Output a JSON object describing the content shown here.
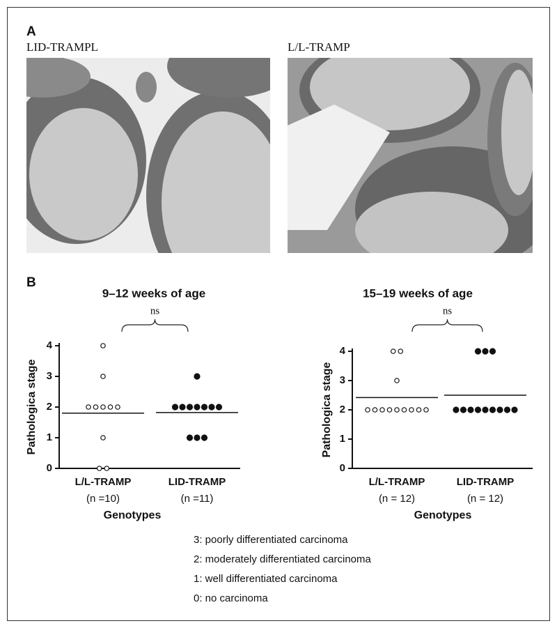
{
  "panel_a": {
    "label": "A",
    "images": [
      {
        "caption": "LID-TRAMPL"
      },
      {
        "caption": "L/L-TRAMP"
      }
    ]
  },
  "panel_b": {
    "label": "B"
  },
  "chart_data": [
    {
      "type": "dot",
      "title": "9–12 weeks of age",
      "annotation": "ns",
      "y_label": "Pathologica stage",
      "x_label": "Genotypes",
      "categories": [
        "L/L-TRAMP",
        "LID-TRAMP"
      ],
      "category_notes": [
        "(n =10)",
        "(n =11)"
      ],
      "groups": [
        {
          "marker": "open",
          "values": [
            4,
            3,
            2,
            2,
            2,
            2,
            2,
            1,
            0,
            0
          ],
          "mean": 1.8
        },
        {
          "marker": "filled",
          "values": [
            3,
            2,
            2,
            2,
            2,
            2,
            2,
            2,
            1,
            1,
            1
          ],
          "mean": 1.82
        }
      ],
      "ylim": [
        0,
        4
      ],
      "yticks": [
        0,
        1,
        2,
        3,
        4
      ]
    },
    {
      "type": "dot",
      "title": "15–19 weeks of age",
      "annotation": "ns",
      "y_label": "Pathologica stage",
      "x_label": "Genotypes",
      "categories": [
        "L/L-TRAMP",
        "LID-TRAMP"
      ],
      "category_notes": [
        "(n = 12)",
        "(n = 12)"
      ],
      "groups": [
        {
          "marker": "open",
          "values": [
            4,
            4,
            3,
            2,
            2,
            2,
            2,
            2,
            2,
            2,
            2,
            2
          ],
          "mean": 2.42
        },
        {
          "marker": "filled",
          "values": [
            4,
            4,
            4,
            2,
            2,
            2,
            2,
            2,
            2,
            2,
            2,
            2
          ],
          "mean": 2.5
        }
      ],
      "ylim": [
        0,
        4
      ],
      "yticks": [
        0,
        1,
        2,
        3,
        4
      ]
    }
  ],
  "stage_key": [
    "3: poorly differentiated carcinoma",
    "2: moderately differentiated carcinoma",
    "1: well differentiated carcinoma",
    "0: no carcinoma"
  ]
}
